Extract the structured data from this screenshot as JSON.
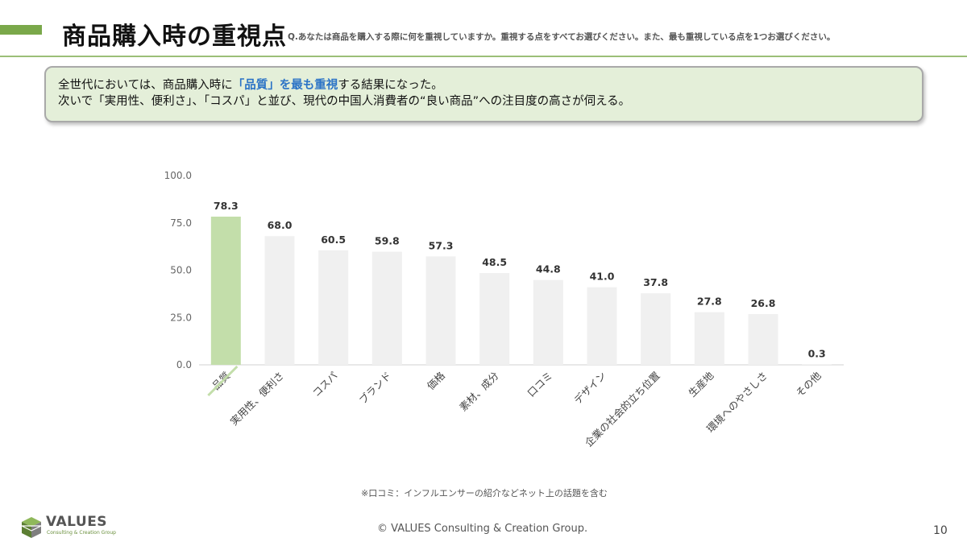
{
  "header": {
    "title": "商品購入時の重視点",
    "question": "Q.あなたは商品を購入する際に何を重視していますか。重視する点をすべてお選びください。また、最も重視している点を1つお選びください。",
    "accent_color": "#7aa84a"
  },
  "summary": {
    "line1_before": "全世代においては、商品購入時に",
    "line1_highlight": "「品質」を最も重視",
    "line1_after": "する結果になった。",
    "line2": "次いで「実用性、便利さ」、「コスパ」と並び、現代の中国人消費者の“良い商品”への注目度の高さが伺える。",
    "highlight_color": "#2b73c6"
  },
  "chart_data": {
    "type": "bar",
    "categories": [
      "品質",
      "実用性、便利さ",
      "コスパ",
      "ブランド",
      "価格",
      "素材、成分",
      "口コミ",
      "デザイン",
      "企業の社会的立ち位置",
      "生産地",
      "環境へのやさしさ",
      "その他"
    ],
    "values": [
      78.3,
      68.0,
      60.5,
      59.8,
      57.3,
      48.5,
      44.8,
      41.0,
      37.8,
      27.8,
      26.8,
      0.3
    ],
    "data_labels": [
      "78.3",
      "68.0",
      "60.5",
      "59.8",
      "57.3",
      "48.5",
      "44.8",
      "41.0",
      "37.8",
      "27.8",
      "26.8",
      "0.3"
    ],
    "ylim": [
      0,
      100
    ],
    "yticks": [
      0,
      25,
      50,
      75,
      100
    ],
    "ytick_labels": [
      "0.0",
      "25.0",
      "50.0",
      "75.0",
      "100.0"
    ],
    "grid": false,
    "highlight_index": 0,
    "highlight_color": "#c3deaa",
    "bar_color": "#f0f0f0",
    "title": "",
    "xlabel": "",
    "ylabel": ""
  },
  "footnote": "※口コミ：インフルエンサーの紹介などネット上の話題を含む",
  "footer": {
    "copyright": "© VALUES Consulting & Creation Group.",
    "page_number": "10",
    "logo_name": "VALUES",
    "logo_sub": "Consulting & Creation Group"
  }
}
